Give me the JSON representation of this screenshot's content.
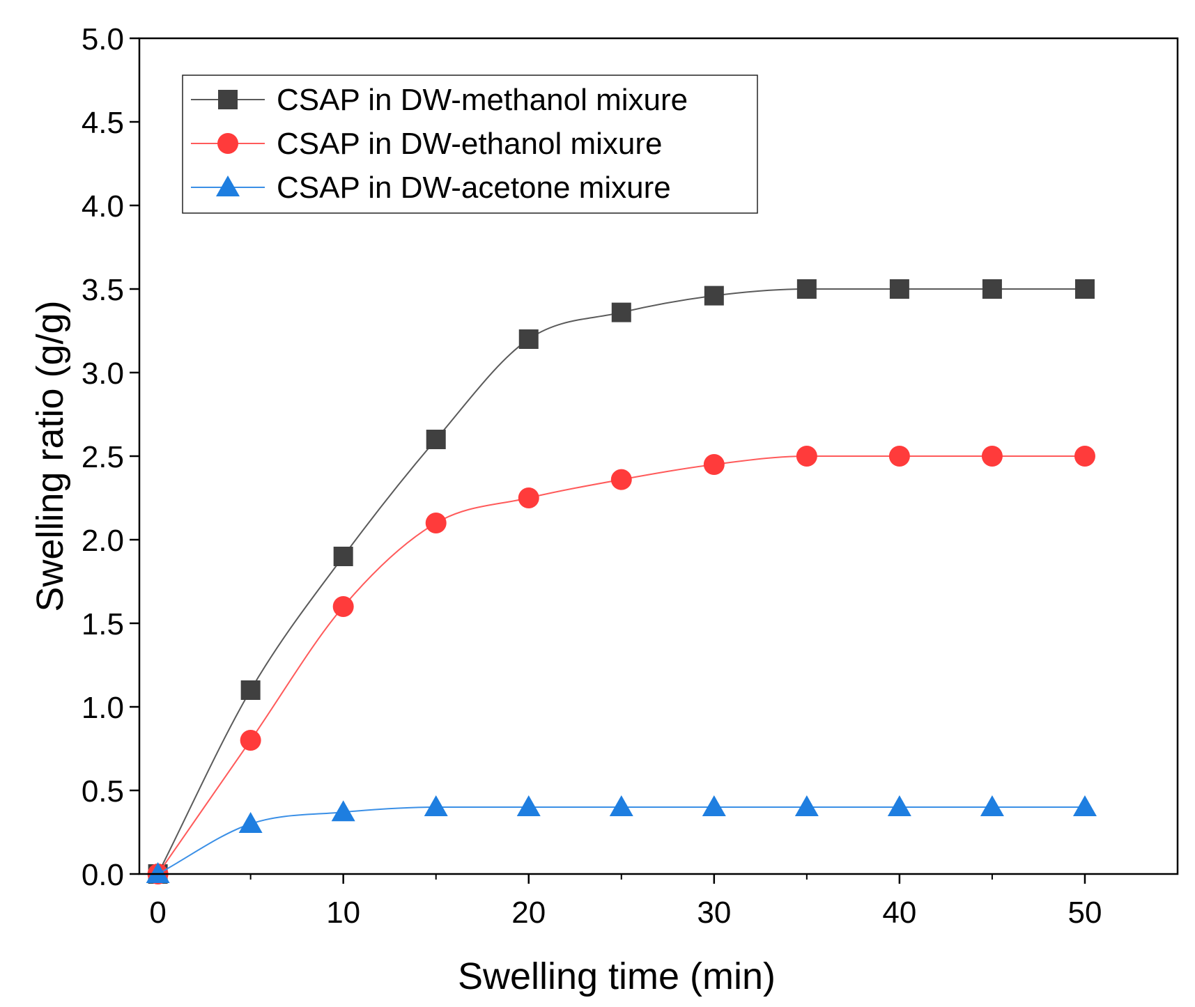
{
  "chart_data": {
    "type": "line",
    "title": "",
    "xlabel": "Swelling time (min)",
    "ylabel": "Swelling ratio (g/g)",
    "xlim": [
      -1,
      55
    ],
    "ylim": [
      0,
      5
    ],
    "xticks": [
      0,
      10,
      20,
      30,
      40,
      50
    ],
    "xtick_labels": [
      "0",
      "10",
      "20",
      "30",
      "40",
      "50"
    ],
    "yticks": [
      0,
      0.5,
      1.0,
      1.5,
      2.0,
      2.5,
      3.0,
      3.5,
      4.0,
      4.5,
      5.0
    ],
    "ytick_labels": [
      "0.0",
      "0.5",
      "1.0",
      "1.5",
      "2.0",
      "2.5",
      "3.0",
      "3.5",
      "4.0",
      "4.5",
      "5.0"
    ],
    "grid": false,
    "legend_position": "top-left",
    "x": [
      0,
      5,
      10,
      15,
      20,
      25,
      30,
      35,
      40,
      45,
      50
    ],
    "series": [
      {
        "name": "CSAP in DW-methanol mixure",
        "marker": "square",
        "color": "#404040",
        "line_color": "#5a5a5a",
        "values": [
          0,
          1.1,
          1.9,
          2.6,
          3.2,
          3.36,
          3.46,
          3.5,
          3.5,
          3.5,
          3.5
        ]
      },
      {
        "name": "CSAP in DW-ethanol mixure",
        "marker": "circle",
        "color": "#ff3b3b",
        "line_color": "#ff5a5a",
        "values": [
          0,
          0.8,
          1.6,
          2.1,
          2.25,
          2.36,
          2.45,
          2.5,
          2.5,
          2.5,
          2.5
        ]
      },
      {
        "name": "CSAP in DW-acetone mixure",
        "marker": "triangle",
        "color": "#1e7ee0",
        "line_color": "#3a8fe6",
        "values": [
          0,
          0.3,
          0.37,
          0.4,
          0.4,
          0.4,
          0.4,
          0.4,
          0.4,
          0.4,
          0.4
        ]
      }
    ]
  }
}
